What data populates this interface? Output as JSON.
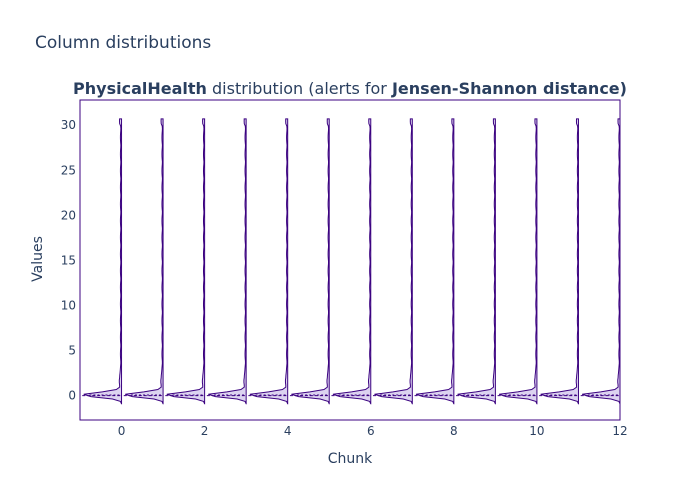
{
  "page_title": "Column distributions",
  "chart_data": {
    "type": "violin",
    "title_parts": [
      {
        "text": "PhysicalHealth",
        "bold": true
      },
      {
        "text": " distribution (alerts for ",
        "bold": false
      },
      {
        "text": "Jensen-Shannon distance)",
        "bold": true
      }
    ],
    "xlabel": "Chunk",
    "ylabel": "Values",
    "xlim": [
      -1,
      12
    ],
    "ylim": [
      -2.7,
      32.8
    ],
    "x_ticks": [
      0,
      2,
      4,
      6,
      8,
      10,
      12
    ],
    "y_ticks": [
      0,
      5,
      10,
      15,
      20,
      25,
      30
    ],
    "chunks": [
      0,
      1,
      2,
      3,
      4,
      5,
      6,
      7,
      8,
      9,
      10,
      11,
      12
    ],
    "value_range": [
      -0.9,
      30.7
    ],
    "median": 0,
    "quartiles": [
      0,
      0.3
    ],
    "colors": {
      "line": "#3b0280",
      "fill": "#dcd3f0",
      "axis": "#3b0280",
      "text": "#2a3f5f"
    }
  }
}
